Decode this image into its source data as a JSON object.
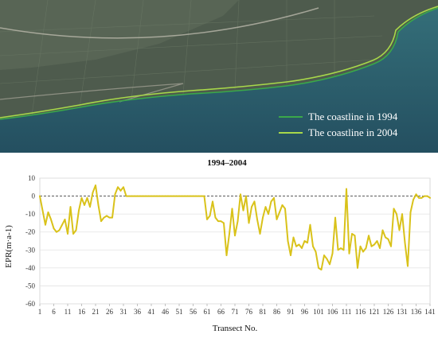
{
  "legend": {
    "items": [
      {
        "label": "The coastline in 1994",
        "color": "#3aa84a"
      },
      {
        "label": "The coastline in 2004",
        "color": "#a8d84a"
      }
    ]
  },
  "colors": {
    "series": "#d9c21a",
    "reference_line": "#444444",
    "gridline": "#e2e2e2",
    "water": "#2b5f6e",
    "land": "#4d5a4c"
  },
  "chart_data": {
    "type": "line",
    "title": "1994–2004",
    "xlabel": "Transect No.",
    "ylabel": "EPR(m·a-1)",
    "ylim": [
      -60,
      10
    ],
    "xlim": [
      1,
      141
    ],
    "yticks": [
      10,
      0,
      -10,
      -20,
      -30,
      -40,
      -50,
      -60
    ],
    "xticks": [
      1,
      6,
      11,
      16,
      21,
      26,
      31,
      36,
      41,
      46,
      51,
      56,
      61,
      66,
      71,
      76,
      81,
      86,
      91,
      96,
      101,
      106,
      111,
      116,
      121,
      126,
      131,
      136,
      141
    ],
    "grid": "horizontal",
    "reference_line": {
      "y": 0,
      "style": "dashed"
    },
    "series": [
      {
        "x": [
          1,
          2,
          3,
          4,
          5,
          6,
          7,
          8,
          9,
          10,
          11,
          12,
          13,
          14,
          15,
          16,
          17,
          18,
          19,
          20,
          21,
          22,
          23,
          24,
          25,
          26,
          27,
          28,
          29,
          30,
          31,
          32,
          33,
          34,
          35,
          36,
          37,
          38,
          39,
          40,
          41,
          42,
          43,
          44,
          45,
          46,
          47,
          48,
          49,
          50,
          51,
          52,
          53,
          54,
          55,
          56,
          57,
          58,
          59,
          60,
          61,
          62,
          63,
          64,
          65,
          66,
          67,
          68,
          69,
          70,
          71,
          72,
          73,
          74,
          75,
          76,
          77,
          78,
          79,
          80,
          81,
          82,
          83,
          84,
          85,
          86,
          87,
          88,
          89,
          90,
          91,
          92,
          93,
          94,
          95,
          96,
          97,
          98,
          99,
          100,
          101,
          102,
          103,
          104,
          105,
          106,
          107,
          108,
          109,
          110,
          111,
          112,
          113,
          114,
          115,
          116,
          117,
          118,
          119,
          120,
          121,
          122,
          123,
          124,
          125,
          126,
          127,
          128,
          129,
          130,
          131,
          132,
          133,
          134,
          135,
          136,
          137,
          138,
          139,
          140,
          141
        ],
        "values": [
          0,
          -8,
          -16,
          -9,
          -13,
          -18,
          -20,
          -19,
          -16,
          -13,
          -21,
          -6,
          -21,
          -19,
          -8,
          -1,
          -5,
          -1,
          -6,
          2,
          6,
          -5,
          -14,
          -12,
          -11,
          -12,
          -12,
          1,
          5,
          3,
          5,
          0,
          0,
          0,
          0,
          0,
          0,
          0,
          0,
          0,
          0,
          0,
          0,
          0,
          0,
          0,
          0,
          0,
          0,
          0,
          0,
          0,
          0,
          0,
          0,
          0,
          0,
          0,
          0,
          0,
          -13,
          -11,
          -3,
          -12,
          -14,
          -14,
          -15,
          -33,
          -21,
          -7,
          -22,
          -14,
          1,
          -8,
          0,
          -15,
          -6,
          -3,
          -13,
          -21,
          -12,
          -6,
          -10,
          -3,
          -1,
          -13,
          -9,
          -5,
          -7,
          -25,
          -33,
          -23,
          -28,
          -27,
          -29,
          -25,
          -26,
          -16,
          -28,
          -31,
          -40,
          -41,
          -33,
          -35,
          -38,
          -32,
          -12,
          -30,
          -29,
          -30,
          4,
          -32,
          -21,
          -22,
          -40,
          -28,
          -31,
          -29,
          -22,
          -28,
          -27,
          -25,
          -29,
          -19,
          -23,
          -24,
          -28,
          -7,
          -10,
          -19,
          -10,
          -26,
          -39,
          -9,
          -2,
          1,
          -1,
          -1,
          0,
          0,
          -1
        ]
      }
    ]
  }
}
